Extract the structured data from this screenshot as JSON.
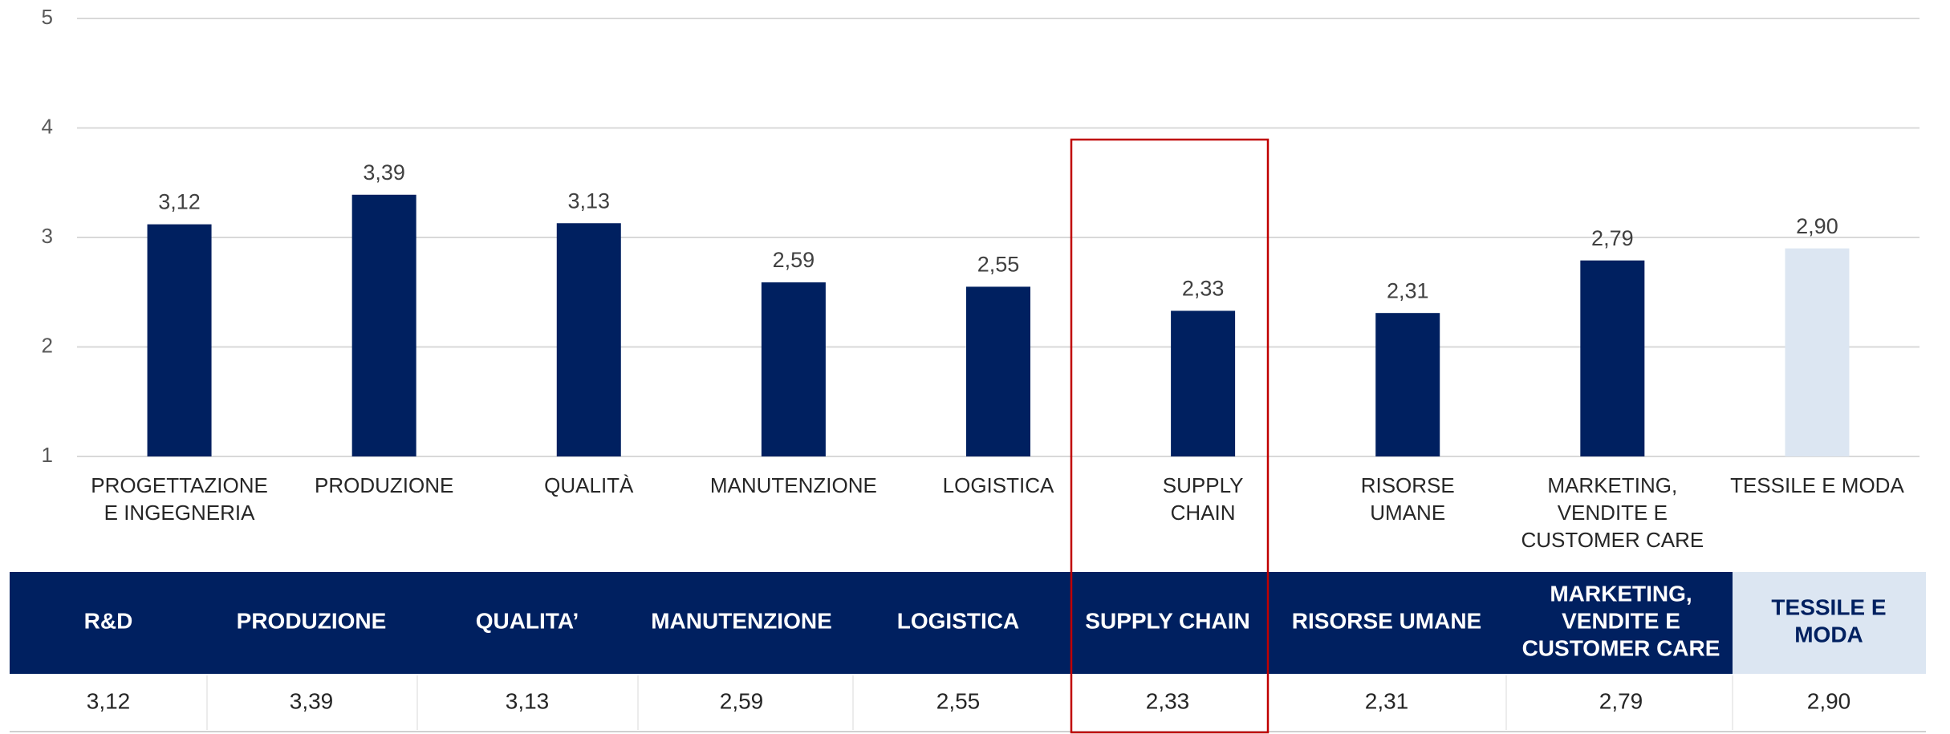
{
  "chart_data": {
    "type": "bar",
    "categories": [
      [
        "PROGETTAZIONE",
        "E INGEGNERIA"
      ],
      [
        "PRODUZIONE"
      ],
      [
        "QUALITÀ"
      ],
      [
        "MANUTENZIONE"
      ],
      [
        "LOGISTICA"
      ],
      [
        "SUPPLY",
        "CHAIN"
      ],
      [
        "RISORSE",
        "UMANE"
      ],
      [
        "MARKETING,",
        "VENDITE E",
        "CUSTOMER CARE"
      ],
      [
        "TESSILE E MODA"
      ]
    ],
    "values": [
      3.12,
      3.39,
      3.13,
      2.59,
      2.55,
      2.33,
      2.31,
      2.79,
      2.9
    ],
    "value_labels": [
      "3,12",
      "3,39",
      "3,13",
      "2,59",
      "2,55",
      "2,33",
      "2,31",
      "2,79",
      "2,90"
    ],
    "colors": [
      "#002060",
      "#002060",
      "#002060",
      "#002060",
      "#002060",
      "#002060",
      "#002060",
      "#002060",
      "#dce6f2"
    ],
    "ylim": [
      1,
      5
    ],
    "yticks": [
      1,
      2,
      3,
      4,
      5
    ],
    "grid": true
  },
  "table": {
    "header": [
      [
        "R&D"
      ],
      [
        "PRODUZIONE"
      ],
      [
        "QUALITA’"
      ],
      [
        "MANUTENZIONE"
      ],
      [
        "LOGISTICA"
      ],
      [
        "SUPPLY CHAIN"
      ],
      [
        "RISORSE UMANE"
      ],
      [
        "MARKETING,",
        "VENDITE E",
        "CUSTOMER CARE"
      ],
      [
        "TESSILE E",
        "MODA"
      ]
    ],
    "row": [
      "3,12",
      "3,39",
      "3,13",
      "2,59",
      "2,55",
      "2,33",
      "2,31",
      "2,79",
      "2,90"
    ]
  }
}
